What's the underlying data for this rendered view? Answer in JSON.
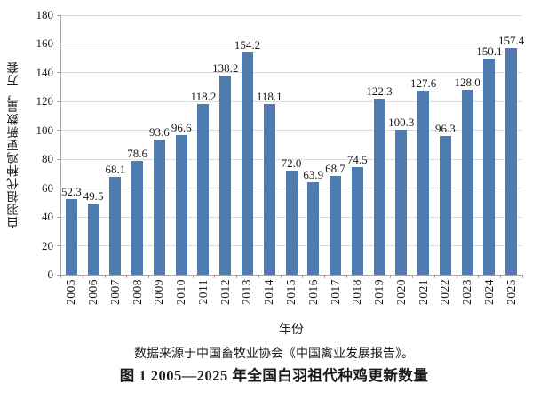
{
  "captions": {
    "source": "数据来源于中国畜牧业协会《中国禽业发展报告》。",
    "title": "图 1 2005—2025 年全国白羽祖代种鸡更新数量"
  },
  "colors": {
    "bar": "#4e7cb1",
    "gridline": "#dcdcdc",
    "axis": "#a6a6a6",
    "text": "#1a1a1a"
  },
  "chart_data": {
    "type": "bar",
    "categories": [
      "2005",
      "2006",
      "2007",
      "2008",
      "2009",
      "2010",
      "2011",
      "2012",
      "2013",
      "2014",
      "2015",
      "2016",
      "2017",
      "2018",
      "2019",
      "2020",
      "2021",
      "2022",
      "2023",
      "2024",
      "2025"
    ],
    "values": [
      52.3,
      49.5,
      68.1,
      78.6,
      93.6,
      96.6,
      118.2,
      138.2,
      154.2,
      118.1,
      72.0,
      63.9,
      68.7,
      74.5,
      122.3,
      100.3,
      127.6,
      96.3,
      128.0,
      150.1,
      157.4
    ],
    "labels": [
      "52.3",
      "49.5",
      "68.1",
      "78.6",
      "93.6",
      "96.6",
      "118.2",
      "138.2",
      "154.2",
      "118.1",
      "72.0",
      "63.9",
      "68.7",
      "74.5",
      "122.3",
      "100.3",
      "127.6",
      "96.3",
      "128.0",
      "150.1",
      "157.4"
    ],
    "title": "",
    "xlabel": "年份",
    "ylabel": "白羽祖代种鸡更新数量，万套",
    "ylim": [
      0,
      180
    ],
    "ytick_step": 20,
    "grid": true,
    "legend": false,
    "bar_label_position": "above"
  }
}
